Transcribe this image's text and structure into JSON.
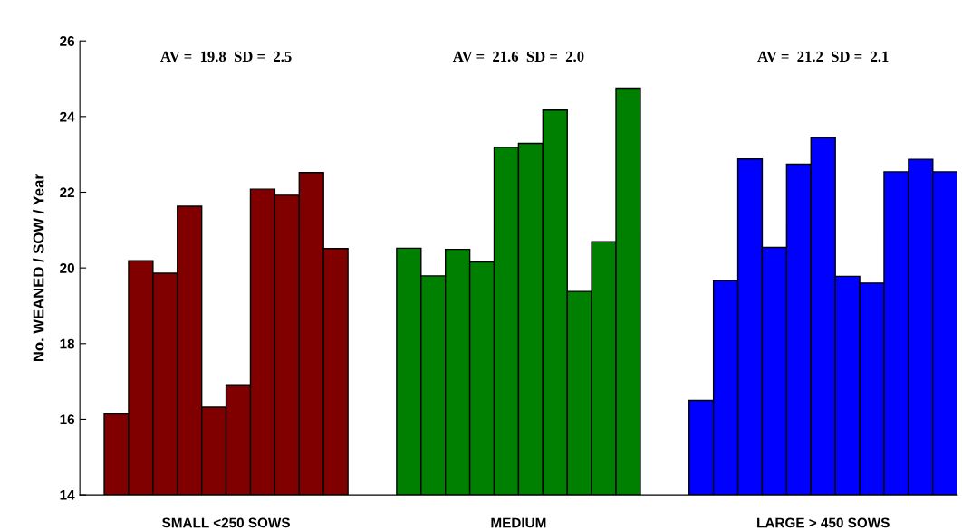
{
  "chart_data": {
    "type": "bar",
    "ylabel": "No. WEANED / SOW / Year",
    "categories": [
      null,
      null,
      null,
      null,
      null,
      null,
      null,
      null,
      null,
      null,
      null,
      null,
      null,
      null,
      null,
      null,
      null,
      null,
      null,
      null,
      null,
      null,
      null,
      null,
      null,
      null,
      null,
      null,
      null,
      null,
      null,
      null,
      null,
      null,
      null,
      null
    ],
    "values": [
      null,
      16.14,
      20.19,
      19.86,
      21.63,
      16.32,
      16.89,
      22.08,
      21.92,
      22.52,
      20.51,
      null,
      null,
      20.52,
      19.79,
      20.49,
      20.16,
      23.19,
      23.29,
      24.17,
      19.38,
      20.69,
      24.75,
      null,
      null,
      16.5,
      19.66,
      22.88,
      20.54,
      22.74,
      23.44,
      19.78,
      19.6,
      22.54,
      22.87,
      22.54
    ],
    "colors": [
      null,
      "#800000",
      "#800000",
      "#800000",
      "#800000",
      "#800000",
      "#800000",
      "#800000",
      "#800000",
      "#800000",
      "#800000",
      null,
      null,
      "#008000",
      "#008000",
      "#008000",
      "#008000",
      "#008000",
      "#008000",
      "#008000",
      "#008000",
      "#008000",
      "#008000",
      null,
      null,
      "#0000ff",
      "#0000ff",
      "#0000ff",
      "#0000ff",
      "#0000ff",
      "#0000ff",
      "#0000ff",
      "#0000ff",
      "#0000ff",
      "#0000ff",
      "#0000ff"
    ],
    "annotations": [
      "SMALL <250 SOWS",
      "MEDIUM",
      "LARGE > 450 SOWS",
      "AV =  19.8  SD =  2.5",
      "AV =  21.6  SD =  2.0",
      "AV =  21.2  SD =  2.1"
    ],
    "ylim": [
      14,
      26
    ],
    "yticks": [
      14,
      16,
      18,
      20,
      22,
      24,
      26
    ],
    "grid": false
  }
}
